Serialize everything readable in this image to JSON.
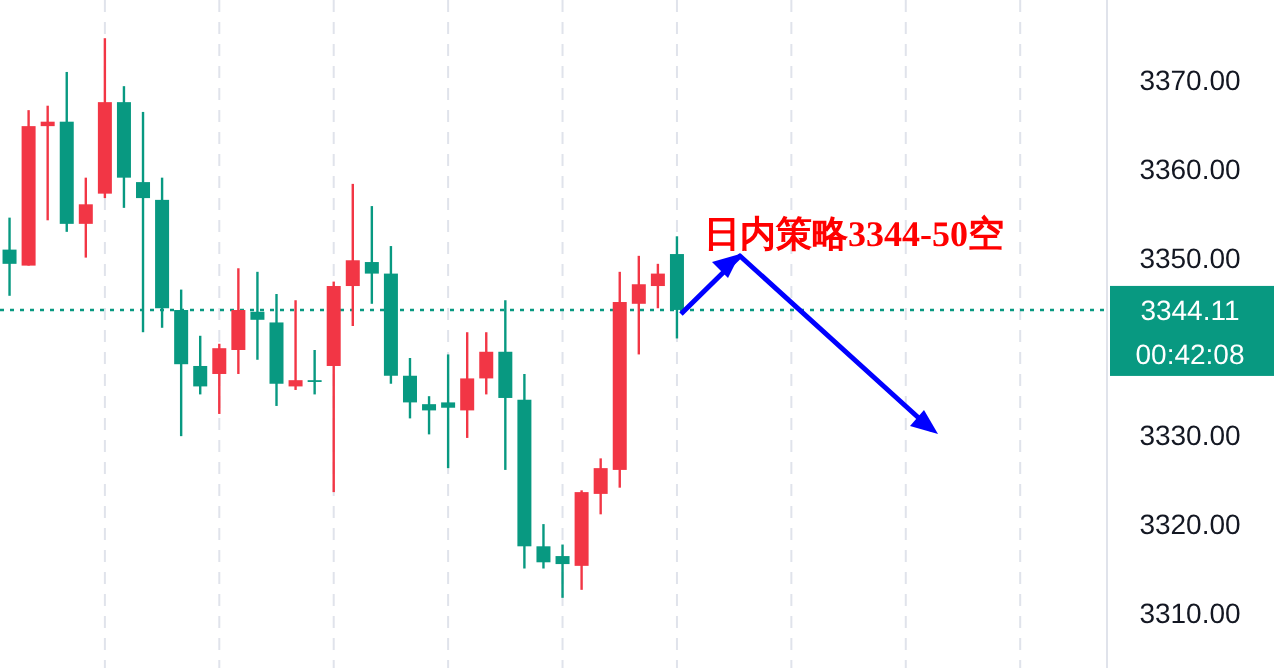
{
  "chart_data": {
    "type": "candlestick",
    "categories": [
      null,
      null,
      null,
      null,
      null,
      null,
      null,
      null,
      null,
      null,
      null,
      null,
      null,
      null,
      null,
      null,
      null,
      null,
      null,
      null,
      null,
      null,
      null,
      null,
      null,
      null,
      null,
      null,
      null,
      null,
      null,
      null,
      null,
      null,
      null,
      null,
      null,
      null,
      null,
      null,
      null,
      null,
      null,
      null,
      null,
      null,
      null,
      null,
      null,
      null,
      null,
      null,
      null,
      null,
      null,
      null,
      null,
      null
    ],
    "ohlc": [
      [
        3350.9,
        3354.5,
        3345.7,
        3349.3
      ],
      [
        3349.1,
        3366.6,
        3349.1,
        3364.8
      ],
      [
        3364.8,
        3367.1,
        3354.2,
        3365.3
      ],
      [
        3365.3,
        3370.9,
        3352.9,
        3353.8
      ],
      [
        3353.8,
        3359.0,
        3350.0,
        3356.0
      ],
      [
        3357.2,
        3374.7,
        3356.7,
        3367.5
      ],
      [
        3367.5,
        3369.3,
        3355.6,
        3359.0
      ],
      [
        3358.5,
        3366.4,
        3341.6,
        3356.7
      ],
      [
        3356.5,
        3359.0,
        3342.1,
        3344.3
      ],
      [
        3344.1,
        3346.4,
        3329.9,
        3338.0
      ],
      [
        3337.8,
        3341.2,
        3334.6,
        3335.5
      ],
      [
        3336.9,
        3340.3,
        3332.4,
        3339.8
      ],
      [
        3339.6,
        3348.8,
        3336.9,
        3344.1
      ],
      [
        3343.9,
        3348.4,
        3338.5,
        3343.0
      ],
      [
        3342.7,
        3345.9,
        3333.3,
        3335.8
      ],
      [
        3335.5,
        3345.2,
        3335.1,
        3336.2
      ],
      [
        3336.2,
        3339.6,
        3334.6,
        3336.0
      ],
      [
        3337.8,
        3347.3,
        3323.6,
        3346.8
      ],
      [
        3346.8,
        3358.3,
        3342.3,
        3349.7
      ],
      [
        3349.5,
        3355.8,
        3344.8,
        3348.2
      ],
      [
        3348.2,
        3351.3,
        3335.8,
        3336.7
      ],
      [
        3336.7,
        3338.7,
        3331.9,
        3333.7
      ],
      [
        3333.5,
        3334.4,
        3330.1,
        3332.8
      ],
      [
        3333.7,
        3339.1,
        3326.3,
        3333.1
      ],
      [
        3332.8,
        3341.6,
        3329.7,
        3336.4
      ],
      [
        3336.4,
        3341.6,
        3334.6,
        3339.4
      ],
      [
        3339.4,
        3345.2,
        3326.1,
        3334.2
      ],
      [
        3334.0,
        3336.9,
        3315.0,
        3317.5
      ],
      [
        3317.5,
        3320.0,
        3315.0,
        3315.7
      ],
      [
        3316.4,
        3317.7,
        3311.7,
        3315.5
      ],
      [
        3315.3,
        3323.8,
        3312.6,
        3323.6
      ],
      [
        3323.4,
        3327.4,
        3321.1,
        3326.3
      ],
      [
        3326.1,
        3348.4,
        3324.1,
        3345.0
      ],
      [
        3344.8,
        3350.2,
        3339.1,
        3347.0
      ],
      [
        3346.8,
        3349.3,
        3344.3,
        3348.2
      ],
      [
        3350.4,
        3352.4,
        3340.9,
        3344.11
      ],
      null,
      null,
      null,
      null,
      null,
      null,
      null,
      null,
      null,
      null,
      null,
      null,
      null,
      null,
      null,
      null,
      null,
      null,
      null,
      null,
      null,
      null
    ],
    "ylim": [
      3303.8,
      3379.0
    ],
    "yticks": [
      {
        "value": 3310,
        "label": "3310.00"
      },
      {
        "value": 3320,
        "label": "3320.00"
      },
      {
        "value": 3330,
        "label": "3330.00"
      },
      {
        "value": 3350,
        "label": "3350.00"
      },
      {
        "value": 3360,
        "label": "3360.00"
      },
      {
        "value": 3370,
        "label": "3370.00"
      }
    ],
    "grid": "x",
    "tick_labels": "y",
    "colors": [
      "#089981",
      "#f23645",
      "#f23645",
      "#089981",
      "#f23645",
      "#f23645",
      "#089981",
      "#089981",
      "#089981",
      "#089981",
      "#089981",
      "#f23645",
      "#f23645",
      "#089981",
      "#089981",
      "#f23645",
      "#089981",
      "#f23645",
      "#f23645",
      "#089981",
      "#089981",
      "#089981",
      "#089981",
      "#089981",
      "#f23645",
      "#f23645",
      "#089981",
      "#089981",
      "#089981",
      "#089981",
      "#f23645",
      "#f23645",
      "#f23645",
      "#f23645",
      "#f23645",
      "#089981",
      null,
      null,
      null,
      null,
      null,
      null,
      null,
      null,
      null,
      null,
      null,
      null,
      null,
      null,
      null,
      null,
      null,
      null,
      null,
      null,
      null,
      null
    ],
    "ref_lines": [
      {
        "axis": "y",
        "value": 3344.11,
        "label": "3344.11",
        "color": "#089981",
        "line_style": "dotted"
      }
    ],
    "annotations": [
      "日内策略3344-50空",
      "00:42:08"
    ]
  }
}
